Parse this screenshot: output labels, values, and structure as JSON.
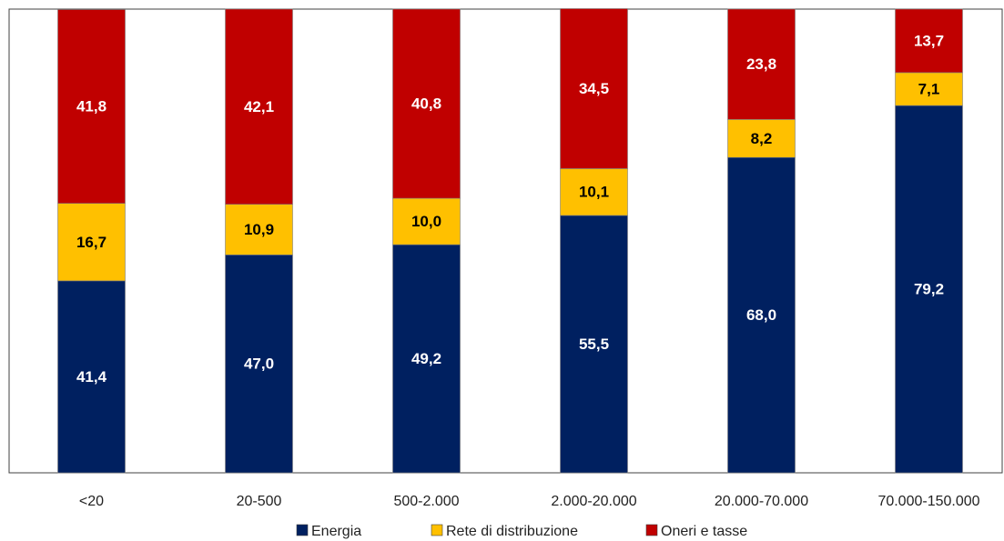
{
  "chart_data": {
    "type": "bar",
    "stacked": true,
    "categories": [
      "<20",
      "20-500",
      "500-2.000",
      "2.000-20.000",
      "20.000-70.000",
      "70.000-150.000"
    ],
    "series": [
      {
        "name": "Energia",
        "color": "#002060",
        "label_color": "#ffffff",
        "values": [
          41.4,
          47.0,
          49.2,
          55.5,
          68.0,
          79.2
        ],
        "labels": [
          "41,4",
          "47,0",
          "49,2",
          "55,5",
          "68,0",
          "79,2"
        ]
      },
      {
        "name": "Rete di distribuzione",
        "color": "#FFC000",
        "label_color": "#000000",
        "values": [
          16.7,
          10.9,
          10.0,
          10.1,
          8.2,
          7.1
        ],
        "labels": [
          "16,7",
          "10,9",
          "10,0",
          "10,1",
          "8,2",
          "7,1"
        ]
      },
      {
        "name": "Oneri e tasse",
        "color": "#C00000",
        "label_color": "#ffffff",
        "values": [
          41.8,
          42.1,
          40.8,
          34.5,
          23.8,
          13.7
        ],
        "labels": [
          "41,8",
          "42,1",
          "40,8",
          "34,5",
          "23,8",
          "13,7"
        ]
      }
    ],
    "ylim": [
      0,
      100
    ],
    "grid": false,
    "legend_position": "bottom"
  }
}
